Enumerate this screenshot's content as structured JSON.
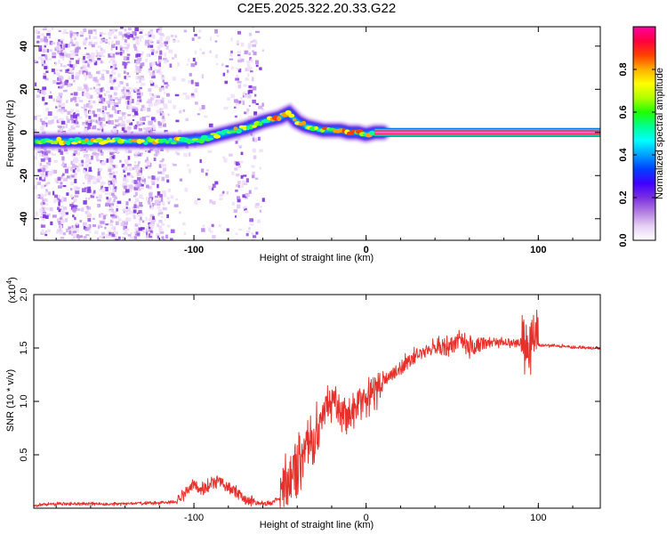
{
  "title": "C2E5.2025.322.20.33.G22",
  "chart_data": [
    {
      "type": "heatmap",
      "title": "C2E5.2025.322.20.33.G22",
      "xlabel": "Height of straight line (km)",
      "ylabel": "Frequency (Hz)",
      "xlim": [
        -193,
        136
      ],
      "ylim": [
        -50,
        49
      ],
      "xticks": [
        -100,
        0,
        100
      ],
      "xtick_labels": [
        "-100",
        "0",
        "100"
      ],
      "yticks": [
        40,
        20,
        0,
        -20,
        -40
      ],
      "ytick_labels": [
        "40",
        "20",
        "0",
        "-20",
        "-40"
      ],
      "ridge": {
        "description": "dominant frequency track",
        "x": [
          -190,
          -170,
          -150,
          -130,
          -110,
          -95,
          -80,
          -70,
          -60,
          -50,
          -45,
          -40,
          -35,
          -30,
          -25,
          -20,
          -15,
          -10,
          -5,
          0,
          5,
          10,
          50,
          100,
          136
        ],
        "y": [
          -4,
          -4,
          -4,
          -4,
          -4,
          -3,
          0,
          2,
          5,
          7,
          9,
          5,
          3,
          2,
          1,
          1,
          1,
          0,
          0,
          -1,
          0,
          0,
          0,
          0,
          0
        ]
      },
      "colorbar": {
        "label": "Normalized spectral amplitude",
        "range": [
          0,
          1
        ],
        "ticks": [
          0.0,
          0.2,
          0.4,
          0.6,
          0.8
        ],
        "tick_labels": [
          "0.0",
          "0.2",
          "0.4",
          "0.6",
          "0.8"
        ],
        "colors": [
          "#ffffff",
          "#e6d0f5",
          "#b27ce0",
          "#7a2fe0",
          "#3f00ff",
          "#0040ff",
          "#00a0ff",
          "#00ffff",
          "#00ff90",
          "#20ff00",
          "#b0ff00",
          "#ffff00",
          "#ffb000",
          "#ff4000",
          "#ff0040",
          "#ff00a0"
        ]
      }
    },
    {
      "type": "line",
      "xlabel": "Height of straight line (km)",
      "ylabel": "SNR (10 * v/v)",
      "multiplier_label": "(x10",
      "multiplier_exp": "4",
      "multiplier_close": ")",
      "xlim": [
        -193,
        136
      ],
      "ylim": [
        0,
        2.0
      ],
      "xticks": [
        -100,
        0,
        100
      ],
      "xtick_labels": [
        "-100",
        "0",
        "100"
      ],
      "yticks": [
        0.5,
        1.0,
        1.5,
        2.0
      ],
      "ytick_labels": [
        "0.5",
        "1.0",
        "1.5",
        "2.0"
      ],
      "series": [
        {
          "name": "SNR",
          "color": "#e8302a",
          "x": [
            -193,
            -180,
            -160,
            -140,
            -120,
            -110,
            -105,
            -100,
            -95,
            -90,
            -85,
            -80,
            -75,
            -70,
            -65,
            -60,
            -55,
            -50,
            -45,
            -40,
            -35,
            -30,
            -25,
            -20,
            -15,
            -10,
            -5,
            0,
            5,
            10,
            15,
            20,
            25,
            30,
            40,
            50,
            55,
            60,
            70,
            80,
            90,
            95,
            98,
            100,
            105,
            110,
            120,
            130,
            136
          ],
          "y": [
            0.03,
            0.04,
            0.04,
            0.04,
            0.05,
            0.06,
            0.15,
            0.22,
            0.18,
            0.22,
            0.25,
            0.2,
            0.15,
            0.08,
            0.05,
            0.04,
            0.05,
            0.1,
            0.25,
            0.4,
            0.5,
            0.65,
            0.9,
            1.0,
            0.9,
            0.85,
            0.95,
            1.0,
            1.1,
            1.2,
            1.25,
            1.3,
            1.4,
            1.45,
            1.5,
            1.53,
            1.6,
            1.5,
            1.55,
            1.55,
            1.56,
            1.55,
            1.62,
            1.53,
            1.52,
            1.52,
            1.51,
            1.5,
            1.5
          ],
          "noise_envelope": [
            {
              "x": [
                -193,
                -110
              ],
              "amp": 0.02
            },
            {
              "x": [
                -110,
                -65
              ],
              "amp": 0.08
            },
            {
              "x": [
                -65,
                -50
              ],
              "amp": 0.03
            },
            {
              "x": [
                -50,
                -25
              ],
              "amp": 0.35
            },
            {
              "x": [
                -25,
                10
              ],
              "amp": 0.22
            },
            {
              "x": [
                10,
                40
              ],
              "amp": 0.1
            },
            {
              "x": [
                40,
                70
              ],
              "amp": 0.12
            },
            {
              "x": [
                70,
                90
              ],
              "amp": 0.06
            },
            {
              "x": [
                90,
                100
              ],
              "amp": 0.35
            },
            {
              "x": [
                100,
                136
              ],
              "amp": 0.02
            }
          ]
        }
      ]
    }
  ]
}
